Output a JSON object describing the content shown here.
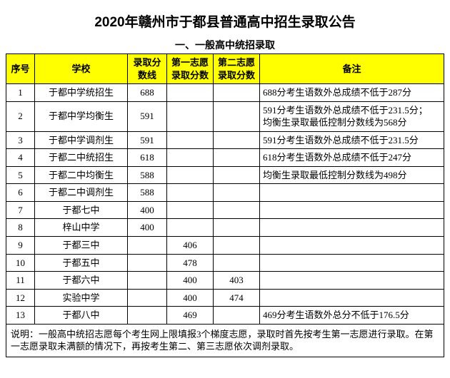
{
  "title": "2020年赣州市于都县普通高中招生录取公告",
  "subtitle": "一、一般高中统招录取",
  "columns": {
    "seq": "序号",
    "school": "学校",
    "scoreLine": "录取分数线",
    "firstChoice": "第一志愿录取分数",
    "secondChoice": "第二志愿录取分数",
    "remark": "备注"
  },
  "rows": [
    {
      "seq": "1",
      "school": "于都中学统招生",
      "scoreLine": "688",
      "first": "",
      "second": "",
      "remark": "688分考生语数外总成绩不低于287分"
    },
    {
      "seq": "2",
      "school": "于都中学均衡生",
      "scoreLine": "591",
      "first": "",
      "second": "",
      "remark": "591分考生语数外总成绩不低于231.5分；\n均衡生录取最低控制分数线为568分"
    },
    {
      "seq": "3",
      "school": "于都中学调剂生",
      "scoreLine": "591",
      "first": "",
      "second": "",
      "remark": "591分考生语数外总成绩不低于231.5分"
    },
    {
      "seq": "4",
      "school": "于都二中统招生",
      "scoreLine": "618",
      "first": "",
      "second": "",
      "remark": "618分考生语数外总成绩不低于247分"
    },
    {
      "seq": "5",
      "school": "于都二中均衡生",
      "scoreLine": "588",
      "first": "",
      "second": "",
      "remark": "均衡生录取最低控制分数线为498分"
    },
    {
      "seq": "6",
      "school": "于都二中调剂生",
      "scoreLine": "588",
      "first": "",
      "second": "",
      "remark": ""
    },
    {
      "seq": "7",
      "school": "于都七中",
      "scoreLine": "400",
      "first": "",
      "second": "",
      "remark": ""
    },
    {
      "seq": "8",
      "school": "梓山中学",
      "scoreLine": "400",
      "first": "",
      "second": "",
      "remark": ""
    },
    {
      "seq": "9",
      "school": "于都三中",
      "scoreLine": "",
      "first": "406",
      "second": "",
      "remark": ""
    },
    {
      "seq": "10",
      "school": "于都五中",
      "scoreLine": "",
      "first": "478",
      "second": "",
      "remark": ""
    },
    {
      "seq": "11",
      "school": "于都六中",
      "scoreLine": "",
      "first": "400",
      "second": "403",
      "remark": ""
    },
    {
      "seq": "12",
      "school": "实验中学",
      "scoreLine": "",
      "first": "400",
      "second": "474",
      "remark": ""
    },
    {
      "seq": "13",
      "school": "于都八中",
      "scoreLine": "",
      "first": "469",
      "second": "",
      "remark": "469分考生语数外总分不低于176.5分"
    }
  ],
  "footnote": "说明：一般高中统招志愿每个考生网上限填报3个梯度志愿，录取时首先按考生第一志愿进行录取。在第一志愿录取未满额的情况下，再按考生第二、第三志愿依次调剂录取。",
  "style": {
    "header_bg": "#ffff00",
    "border_color": "#000000",
    "title_fontsize": 19,
    "cell_fontsize": 13
  }
}
